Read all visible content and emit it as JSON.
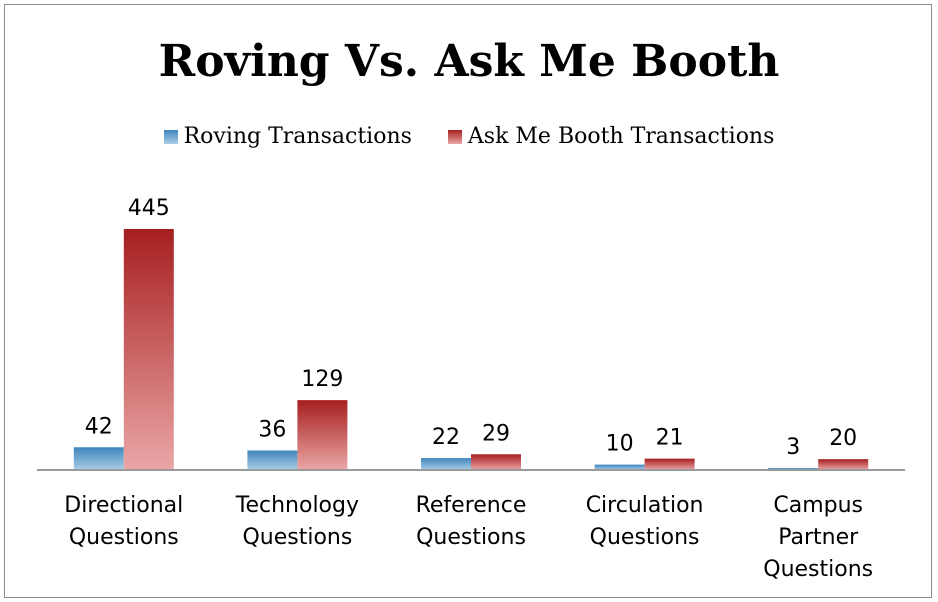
{
  "chart_data": {
    "type": "bar",
    "title": "Roving Vs. Ask Me Booth",
    "categories": [
      [
        "Directional",
        "Questions"
      ],
      [
        "Technology",
        "Questions"
      ],
      [
        "Reference",
        "Questions"
      ],
      [
        "Circulation",
        "Questions"
      ],
      [
        "Campus",
        "Partner",
        "Questions"
      ]
    ],
    "series": [
      {
        "name": "Roving Transactions",
        "values": [
          42,
          36,
          22,
          10,
          3
        ],
        "color": "#4a90c2"
      },
      {
        "name": "Ask Me Booth Transactions",
        "values": [
          445,
          129,
          29,
          21,
          20
        ],
        "color": "#b22a2a"
      }
    ],
    "legend_position": "top",
    "grid": false
  }
}
